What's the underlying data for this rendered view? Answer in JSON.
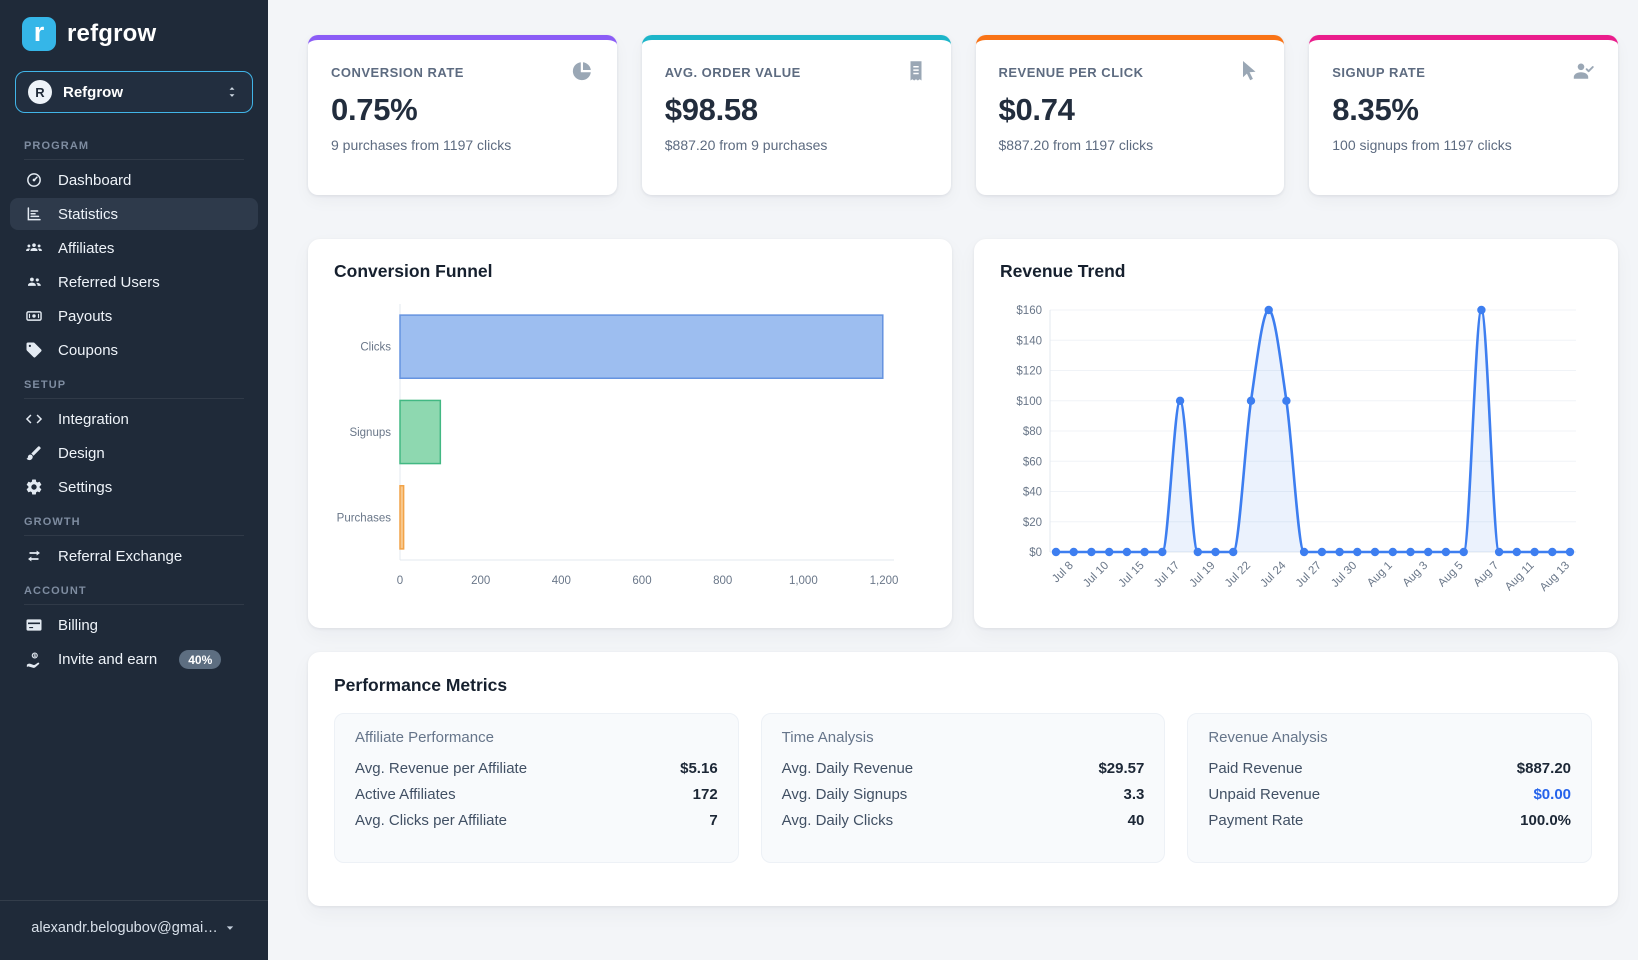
{
  "sidebar": {
    "logo_mark": "r",
    "logo_text": "refgrow",
    "program_selector": {
      "initial": "R",
      "label": "Refgrow",
      "icon": "chevron-up-down-icon"
    },
    "sections": [
      {
        "heading": "PROGRAM",
        "items": [
          {
            "label": "Dashboard",
            "icon": "dashboard-icon",
            "active": false
          },
          {
            "label": "Statistics",
            "icon": "bar-chart-icon",
            "active": true
          },
          {
            "label": "Affiliates",
            "icon": "affiliates-icon",
            "active": false
          },
          {
            "label": "Referred Users",
            "icon": "users-icon",
            "active": false
          },
          {
            "label": "Payouts",
            "icon": "banknote-icon",
            "active": false
          },
          {
            "label": "Coupons",
            "icon": "tag-icon",
            "active": false
          }
        ]
      },
      {
        "heading": "SETUP",
        "items": [
          {
            "label": "Integration",
            "icon": "code-icon",
            "active": false
          },
          {
            "label": "Design",
            "icon": "brush-icon",
            "active": false
          },
          {
            "label": "Settings",
            "icon": "gear-icon",
            "active": false
          }
        ]
      },
      {
        "heading": "GROWTH",
        "items": [
          {
            "label": "Referral Exchange",
            "icon": "swap-icon",
            "active": false
          }
        ]
      },
      {
        "heading": "ACCOUNT",
        "items": [
          {
            "label": "Billing",
            "icon": "credit-card-icon",
            "active": false
          },
          {
            "label": "Invite and earn",
            "icon": "hand-dollar-icon",
            "active": false,
            "badge": "40%"
          }
        ]
      }
    ],
    "footer": {
      "email": "alexandr.belogubov@gmai…",
      "icon": "caret-down-icon"
    }
  },
  "stat_cards": [
    {
      "title": "CONVERSION RATE",
      "value": "0.75%",
      "subtitle": "9 purchases from 1197 clicks",
      "accent": "#8b5cf6",
      "icon": "pie-chart-icon"
    },
    {
      "title": "AVG. ORDER VALUE",
      "value": "$98.58",
      "subtitle": "$887.20 from 9 purchases",
      "accent": "#1cb5c9",
      "icon": "receipt-icon"
    },
    {
      "title": "REVENUE PER CLICK",
      "value": "$0.74",
      "subtitle": "$887.20 from 1197 clicks",
      "accent": "#f97316",
      "icon": "cursor-icon"
    },
    {
      "title": "SIGNUP RATE",
      "value": "8.35%",
      "subtitle": "100 signups from 1197 clicks",
      "accent": "#ea1d8c",
      "icon": "person-check-icon"
    }
  ],
  "chart_data": [
    {
      "type": "bar",
      "orientation": "horizontal",
      "title": "Conversion Funnel",
      "categories": [
        "Clicks",
        "Signups",
        "Purchases"
      ],
      "values": [
        1197,
        100,
        9
      ],
      "xlim": [
        0,
        1200
      ],
      "x_ticks": [
        "0",
        "200",
        "400",
        "600",
        "800",
        "1,000",
        "1,200"
      ],
      "bar_colors": [
        {
          "fill": "#9dbef0",
          "border": "#6593e0"
        },
        {
          "fill": "#8ed8b0",
          "border": "#42b883"
        },
        {
          "fill": "#f8c98e",
          "border": "#f2a348"
        }
      ],
      "grid": false,
      "legend": "none"
    },
    {
      "type": "line",
      "title": "Revenue Trend",
      "x_labels": [
        "",
        "Jul 8",
        "",
        "Jul 10",
        "",
        "Jul 15",
        "",
        "Jul 17",
        "",
        "Jul 19",
        "",
        "Jul 22",
        "",
        "Jul 24",
        "",
        "Jul 27",
        "",
        "Jul 30",
        "",
        "Aug 1",
        "",
        "Aug 3",
        "",
        "Aug 5",
        "",
        "Aug 7",
        "",
        "Aug 11",
        "",
        "Aug 13"
      ],
      "values": [
        0,
        0,
        0,
        0,
        0,
        0,
        0,
        100,
        0,
        0,
        0,
        100,
        160,
        100,
        0,
        0,
        0,
        0,
        0,
        0,
        0,
        0,
        0,
        0,
        160,
        0,
        0,
        0,
        0,
        0
      ],
      "ylim": [
        0,
        160
      ],
      "y_tick_step": 20,
      "y_prefix": "$",
      "line_color": "#3d7ef0",
      "fill_color": "rgba(61,126,240,0.10)",
      "grid": true,
      "legend": "none"
    }
  ],
  "performance": {
    "title": "Performance Metrics",
    "groups": [
      {
        "title": "Affiliate Performance",
        "rows": [
          {
            "label": "Avg. Revenue per Affiliate",
            "value": "$5.16"
          },
          {
            "label": "Active Affiliates",
            "value": "172"
          },
          {
            "label": "Avg. Clicks per Affiliate",
            "value": "7"
          }
        ]
      },
      {
        "title": "Time Analysis",
        "rows": [
          {
            "label": "Avg. Daily Revenue",
            "value": "$29.57"
          },
          {
            "label": "Avg. Daily Signups",
            "value": "3.3"
          },
          {
            "label": "Avg. Daily Clicks",
            "value": "40"
          }
        ]
      },
      {
        "title": "Revenue Analysis",
        "rows": [
          {
            "label": "Paid Revenue",
            "value": "$887.20"
          },
          {
            "label": "Unpaid Revenue",
            "value": "$0.00",
            "value_color": "#2563eb"
          },
          {
            "label": "Payment Rate",
            "value": "100.0%"
          }
        ]
      }
    ]
  }
}
